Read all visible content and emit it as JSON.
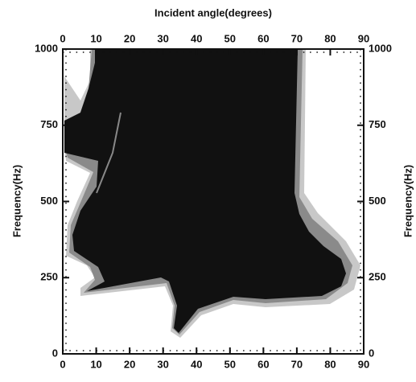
{
  "chart_data": {
    "type": "contour",
    "x_label": "Incident angle(degrees)",
    "y_label": "Frequency(Hz)",
    "y2_label": "Frequency(Hz)",
    "xlim": [
      0,
      90
    ],
    "xticks": [
      0,
      10,
      20,
      30,
      40,
      50,
      60,
      70,
      80,
      90
    ],
    "ylim": [
      0,
      1000
    ],
    "yticks": [
      0,
      250,
      500,
      750,
      1000
    ],
    "y2lim": [
      0,
      1000
    ],
    "y2ticks": [
      0,
      250,
      500,
      750,
      1000
    ],
    "color": "#111111"
  }
}
